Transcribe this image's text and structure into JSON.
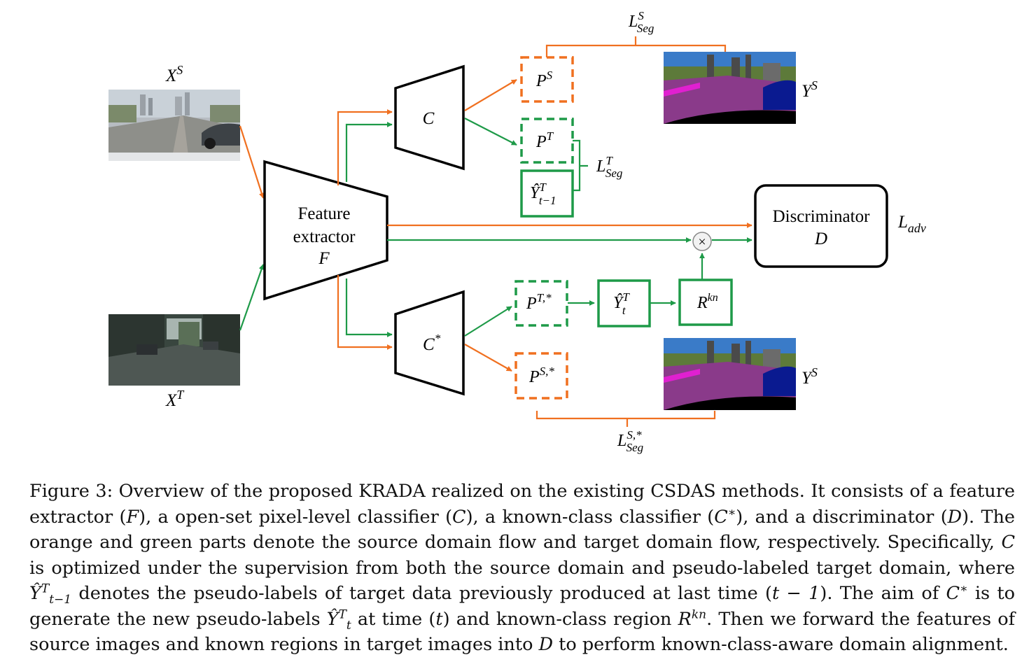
{
  "inputs": {
    "source_image_label": "X^S",
    "target_image_label": "X^T"
  },
  "feature_extractor": {
    "line1": "Feature",
    "line2": "extractor",
    "symbol": "F"
  },
  "classifiers": {
    "open_set": "C",
    "known_class": "C*"
  },
  "predictions": {
    "source_pred": "P^S",
    "target_pred": "P^T",
    "prev_pseudo_label": "Ŷ^T_{t−1}",
    "target_pred_star": "P^{T,*}",
    "source_pred_star": "P^{S,*}",
    "new_pseudo_label": "Ŷ^T_t",
    "known_region": "R^{kn}"
  },
  "losses": {
    "source_seg": "L^S_{Seg}",
    "target_seg": "L^T_{Seg}",
    "source_seg_star": "L^{S,*}_{Seg}",
    "adversarial": "L_{adv}"
  },
  "discriminator": {
    "line1": "Discriminator",
    "symbol": "D"
  },
  "ground_truth": {
    "top": "Y^S",
    "bottom": "Y^S"
  },
  "colors": {
    "source_flow": "#f07020",
    "target_flow": "#1e9a48"
  },
  "caption": {
    "label": "Figure 3:",
    "s1": "Overview of the proposed KRADA realized on the existing CSDAS methods. It consists of a feature extractor (",
    "s2": "), a open-set pixel-level classifier (",
    "s3": "), a known-class classifier (",
    "s4": "), and a discriminator (",
    "s5": "). The orange and green parts denote the source domain flow and target domain flow, respectively. Specifically, ",
    "s6": " is optimized under the supervision from both the source domain and pseudo-labeled target domain, where ",
    "s7": " denotes the pseudo-labels of target data previously produced at last time (",
    "s8": "). The aim of ",
    "s9": " is to generate the new pseudo-labels ",
    "s10": " at time (",
    "s11": ") and known-class region ",
    "s12": ". Then we forward the features of source images and known regions in target images into ",
    "s13": " to perform known-class-aware domain alignment.",
    "sym_F": "F",
    "sym_C": "C",
    "sym_Cstar": "C",
    "sym_star": "∗",
    "sym_D": "D",
    "sym_Y": "Ŷ",
    "sym_T": "T",
    "sym_tm1": "t−1",
    "sym_t": "t",
    "sym_tminus1": "t − 1",
    "sym_R": "R",
    "sym_kn": "kn"
  }
}
